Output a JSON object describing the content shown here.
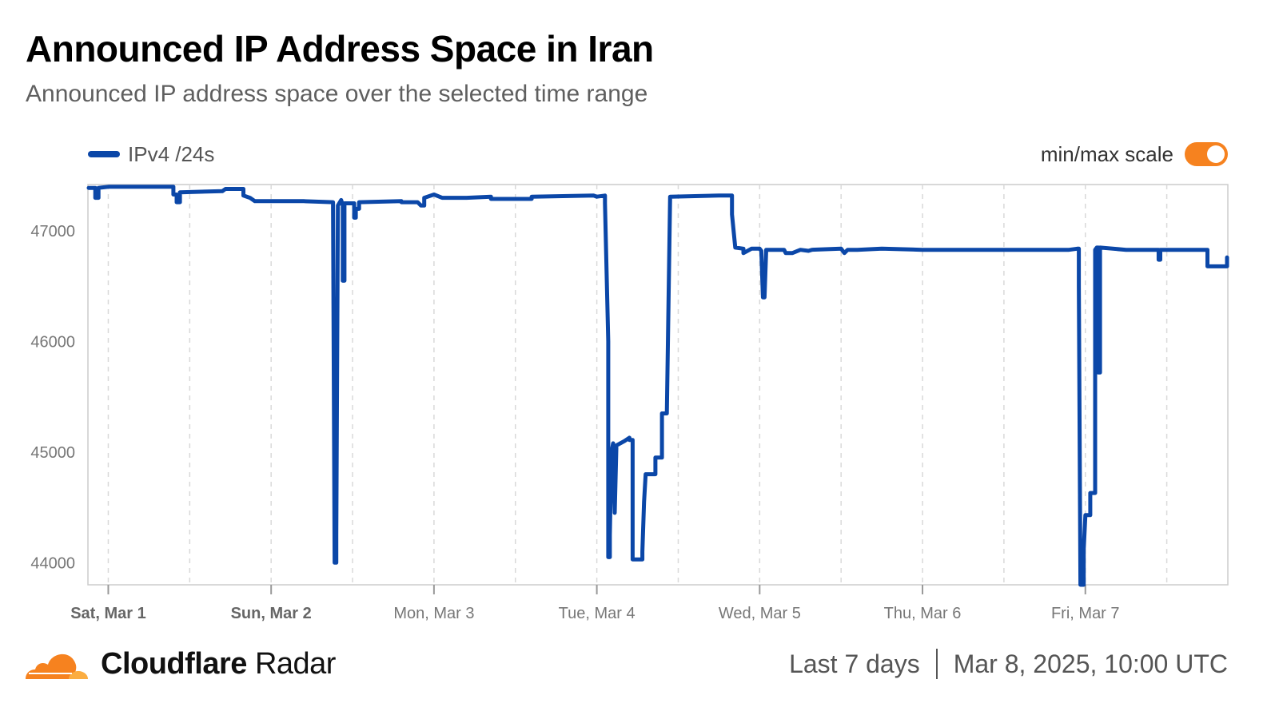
{
  "header": {
    "title": "Announced IP Address Space in Iran",
    "subtitle": "Announced IP address space over the selected time range"
  },
  "legend": {
    "label": "IPv4 /24s"
  },
  "toggle": {
    "label": "min/max scale",
    "on": true
  },
  "footer": {
    "brand_bold": "Cloudflare",
    "brand_light": " Radar",
    "range": "Last 7 days",
    "timestamp": "Mar 8, 2025, 10:00 UTC"
  },
  "colors": {
    "line": "#0b47a8",
    "toggle": "#f6821f",
    "grid": "#d9d9d9",
    "axis": "#cccccc"
  },
  "icons": {
    "logo": "cloudflare-cloud-icon"
  },
  "chart_data": {
    "type": "line",
    "title": "Announced IP Address Space in Iran",
    "xlabel": "",
    "ylabel": "",
    "x_ticks": [
      {
        "label": "Sat, Mar 1",
        "day": 0,
        "bold": true
      },
      {
        "label": "Sun, Mar 2",
        "day": 1,
        "bold": true
      },
      {
        "label": "Mon, Mar 3",
        "day": 2,
        "bold": false
      },
      {
        "label": "Tue, Mar 4",
        "day": 3,
        "bold": false
      },
      {
        "label": "Wed, Mar 5",
        "day": 4,
        "bold": false
      },
      {
        "label": "Thu, Mar 6",
        "day": 5,
        "bold": false
      },
      {
        "label": "Fri, Mar 7",
        "day": 6,
        "bold": false
      }
    ],
    "y_ticks": [
      44000,
      45000,
      46000,
      47000
    ],
    "xlim": [
      -0.125,
      6.875
    ],
    "ylim": [
      43800,
      47420
    ],
    "grid": {
      "x_dashed": true,
      "y": false
    },
    "legend_position": "top-left",
    "series": [
      {
        "name": "IPv4 /24s",
        "points": [
          [
            -0.12,
            47390
          ],
          [
            -0.08,
            47390
          ],
          [
            -0.08,
            47300
          ],
          [
            -0.06,
            47300
          ],
          [
            -0.06,
            47390
          ],
          [
            0.0,
            47400
          ],
          [
            0.4,
            47400
          ],
          [
            0.4,
            47330
          ],
          [
            0.42,
            47330
          ],
          [
            0.42,
            47260
          ],
          [
            0.44,
            47260
          ],
          [
            0.44,
            47350
          ],
          [
            0.7,
            47360
          ],
          [
            0.72,
            47380
          ],
          [
            0.83,
            47380
          ],
          [
            0.83,
            47320
          ],
          [
            0.87,
            47300
          ],
          [
            0.9,
            47270
          ],
          [
            1.2,
            47270
          ],
          [
            1.38,
            47260
          ],
          [
            1.38,
            47260
          ],
          [
            1.39,
            44000
          ],
          [
            1.4,
            44000
          ],
          [
            1.4,
            44250
          ],
          [
            1.41,
            47230
          ],
          [
            1.43,
            47280
          ],
          [
            1.44,
            47230
          ],
          [
            1.44,
            46550
          ],
          [
            1.45,
            46550
          ],
          [
            1.45,
            47250
          ],
          [
            1.51,
            47250
          ],
          [
            1.51,
            47120
          ],
          [
            1.52,
            47120
          ],
          [
            1.52,
            47200
          ],
          [
            1.54,
            47200
          ],
          [
            1.54,
            47260
          ],
          [
            1.8,
            47270
          ],
          [
            1.8,
            47260
          ],
          [
            1.9,
            47260
          ],
          [
            1.92,
            47230
          ],
          [
            1.94,
            47230
          ],
          [
            1.94,
            47300
          ],
          [
            2.0,
            47330
          ],
          [
            2.05,
            47300
          ],
          [
            2.2,
            47300
          ],
          [
            2.35,
            47310
          ],
          [
            2.35,
            47290
          ],
          [
            2.6,
            47290
          ],
          [
            2.6,
            47310
          ],
          [
            2.98,
            47320
          ],
          [
            3.0,
            47310
          ],
          [
            3.05,
            47320
          ],
          [
            3.05,
            47250
          ],
          [
            3.07,
            46000
          ],
          [
            3.07,
            44050
          ],
          [
            3.08,
            44050
          ],
          [
            3.08,
            44250
          ],
          [
            3.09,
            45000
          ],
          [
            3.1,
            45080
          ],
          [
            3.11,
            44450
          ],
          [
            3.12,
            45060
          ],
          [
            3.17,
            45100
          ],
          [
            3.2,
            45130
          ],
          [
            3.2,
            45110
          ],
          [
            3.22,
            45110
          ],
          [
            3.22,
            44030
          ],
          [
            3.28,
            44030
          ],
          [
            3.28,
            44100
          ],
          [
            3.29,
            44550
          ],
          [
            3.3,
            44800
          ],
          [
            3.36,
            44800
          ],
          [
            3.36,
            44950
          ],
          [
            3.4,
            44950
          ],
          [
            3.4,
            45350
          ],
          [
            3.43,
            45350
          ],
          [
            3.45,
            47310
          ],
          [
            3.75,
            47320
          ],
          [
            3.83,
            47320
          ],
          [
            3.83,
            47150
          ],
          [
            3.85,
            46850
          ],
          [
            3.9,
            46840
          ],
          [
            3.9,
            46800
          ],
          [
            3.95,
            46840
          ],
          [
            4.0,
            46840
          ],
          [
            4.01,
            46820
          ],
          [
            4.02,
            46400
          ],
          [
            4.03,
            46400
          ],
          [
            4.04,
            46830
          ],
          [
            4.15,
            46830
          ],
          [
            4.16,
            46800
          ],
          [
            4.2,
            46800
          ],
          [
            4.25,
            46830
          ],
          [
            4.3,
            46820
          ],
          [
            4.32,
            46830
          ],
          [
            4.5,
            46840
          ],
          [
            4.52,
            46800
          ],
          [
            4.54,
            46830
          ],
          [
            4.6,
            46830
          ],
          [
            4.75,
            46840
          ],
          [
            5.0,
            46830
          ],
          [
            5.5,
            46830
          ],
          [
            5.9,
            46830
          ],
          [
            5.95,
            46840
          ],
          [
            5.96,
            46840
          ],
          [
            5.96,
            46500
          ],
          [
            5.97,
            43800
          ],
          [
            5.99,
            43800
          ],
          [
            5.99,
            44120
          ],
          [
            6.0,
            44430
          ],
          [
            6.03,
            44430
          ],
          [
            6.03,
            44630
          ],
          [
            6.06,
            44630
          ],
          [
            6.06,
            46830
          ],
          [
            6.07,
            46850
          ],
          [
            6.08,
            46850
          ],
          [
            6.08,
            45720
          ],
          [
            6.09,
            45720
          ],
          [
            6.09,
            46850
          ],
          [
            6.25,
            46830
          ],
          [
            6.45,
            46830
          ],
          [
            6.45,
            46740
          ],
          [
            6.46,
            46740
          ],
          [
            6.46,
            46830
          ],
          [
            6.75,
            46830
          ],
          [
            6.75,
            46680
          ],
          [
            6.87,
            46680
          ],
          [
            6.87,
            46760
          ]
        ]
      }
    ]
  }
}
